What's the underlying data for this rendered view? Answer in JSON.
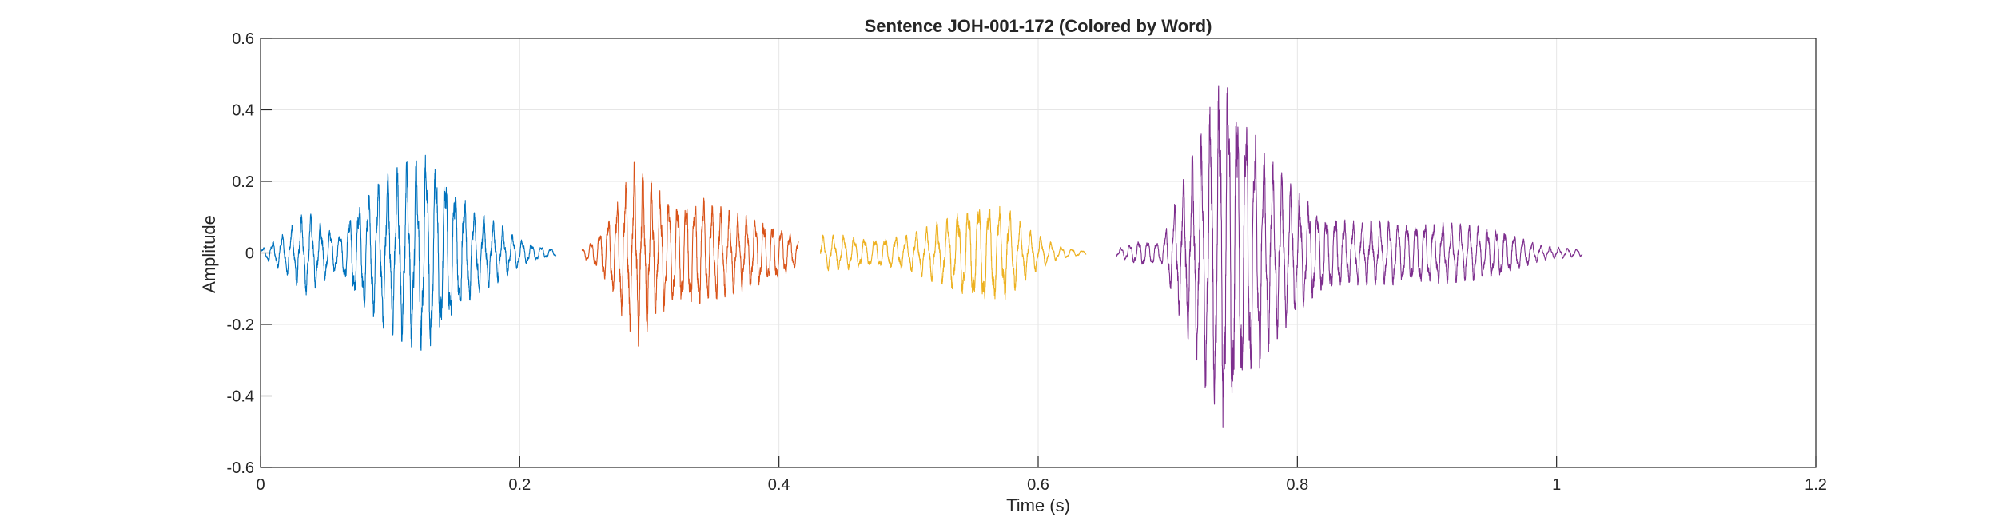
{
  "chart_data": {
    "type": "line",
    "title": "Sentence JOH-001-172 (Colored by Word)",
    "xlabel": "Time (s)",
    "ylabel": "Amplitude",
    "xlim": [
      0,
      1.2
    ],
    "ylim": [
      -0.6,
      0.6
    ],
    "xticks": [
      0,
      0.2,
      0.4,
      0.6,
      0.8,
      1,
      1.2
    ],
    "xtick_labels": [
      "0",
      "0.2",
      "0.4",
      "0.6",
      "0.8",
      "1",
      "1.2"
    ],
    "yticks": [
      -0.6,
      -0.4,
      -0.2,
      0,
      0.2,
      0.4,
      0.6
    ],
    "ytick_labels": [
      "-0.6",
      "-0.4",
      "-0.2",
      "0",
      "0.2",
      "0.4",
      "0.6"
    ],
    "grid": true,
    "series": [
      {
        "color": "#0072BD",
        "time_range": [
          0.0,
          0.228
        ],
        "envelope": [
          [
            0.0,
            0.01
          ],
          [
            0.02,
            0.06
          ],
          [
            0.035,
            0.12
          ],
          [
            0.045,
            0.09
          ],
          [
            0.06,
            0.05
          ],
          [
            0.07,
            0.12
          ],
          [
            0.09,
            0.2
          ],
          [
            0.11,
            0.25
          ],
          [
            0.13,
            0.29
          ],
          [
            0.145,
            0.22
          ],
          [
            0.165,
            0.12
          ],
          [
            0.185,
            0.08
          ],
          [
            0.2,
            0.04
          ],
          [
            0.215,
            0.02
          ],
          [
            0.228,
            0.01
          ]
        ]
      },
      {
        "color": "#D95319",
        "time_range": [
          0.248,
          0.415
        ],
        "envelope": [
          [
            0.248,
            0.01
          ],
          [
            0.26,
            0.05
          ],
          [
            0.275,
            0.15
          ],
          [
            0.29,
            0.27
          ],
          [
            0.305,
            0.18
          ],
          [
            0.32,
            0.15
          ],
          [
            0.34,
            0.16
          ],
          [
            0.36,
            0.12
          ],
          [
            0.38,
            0.1
          ],
          [
            0.4,
            0.08
          ],
          [
            0.415,
            0.04
          ]
        ]
      },
      {
        "color": "#EDB120",
        "time_range": [
          0.432,
          0.637
        ],
        "envelope": [
          [
            0.432,
            0.05
          ],
          [
            0.45,
            0.05
          ],
          [
            0.47,
            0.04
          ],
          [
            0.5,
            0.05
          ],
          [
            0.53,
            0.1
          ],
          [
            0.555,
            0.15
          ],
          [
            0.575,
            0.13
          ],
          [
            0.595,
            0.06
          ],
          [
            0.615,
            0.02
          ],
          [
            0.637,
            0.005
          ]
        ]
      },
      {
        "color": "#7E2F8E",
        "time_range": [
          0.66,
          1.02
        ],
        "envelope": [
          [
            0.66,
            0.01
          ],
          [
            0.68,
            0.04
          ],
          [
            0.695,
            0.03
          ],
          [
            0.705,
            0.14
          ],
          [
            0.72,
            0.28
          ],
          [
            0.735,
            0.45
          ],
          [
            0.745,
            0.53
          ],
          [
            0.76,
            0.4
          ],
          [
            0.78,
            0.26
          ],
          [
            0.8,
            0.17
          ],
          [
            0.82,
            0.12
          ],
          [
            0.84,
            0.09
          ],
          [
            0.87,
            0.09
          ],
          [
            0.9,
            0.09
          ],
          [
            0.93,
            0.08
          ],
          [
            0.96,
            0.07
          ],
          [
            0.975,
            0.04
          ],
          [
            0.99,
            0.02
          ],
          [
            1.02,
            0.01
          ]
        ]
      }
    ]
  }
}
